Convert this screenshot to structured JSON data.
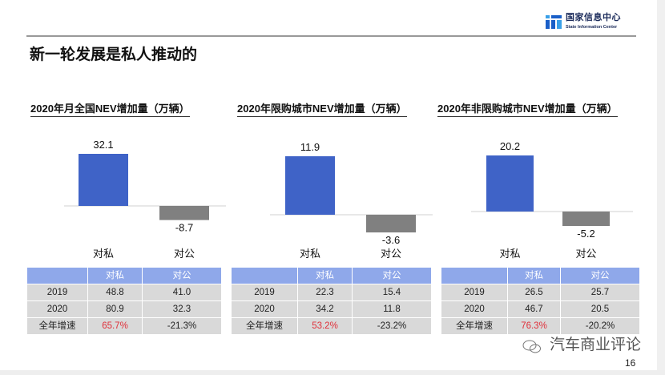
{
  "header": {
    "logo_cn": "国家信息中心",
    "logo_en": "State Information Center",
    "title": "新一轮发展是私人推动的",
    "page_number": "16"
  },
  "watermark": "汽车商业评论",
  "colors": {
    "positive_bar": "#3f63c7",
    "negative_bar": "#808080",
    "table_header": "#8fa8ea",
    "table_body": "#d9d9d9",
    "growth_positive": "#e0303a"
  },
  "chart_data": [
    {
      "type": "bar",
      "title": "2020年月全国NEV增加量（万辆）",
      "categories": [
        "对私",
        "对公"
      ],
      "values": [
        32.1,
        -8.7
      ],
      "data_labels": [
        "32.1",
        "-8.7"
      ]
    },
    {
      "type": "bar",
      "title": "2020年限购城市NEV增加量（万辆）",
      "categories": [
        "对私",
        "对公"
      ],
      "values": [
        11.9,
        -3.6
      ],
      "data_labels": [
        "11.9",
        "-3.6"
      ]
    },
    {
      "type": "bar",
      "title": "2020年非限购城市NEV增加量（万辆）",
      "categories": [
        "对私",
        "对公"
      ],
      "values": [
        20.2,
        -5.2
      ],
      "data_labels": [
        "20.2",
        "-5.2"
      ]
    }
  ],
  "tables": [
    {
      "headers": [
        "",
        "对私",
        "对公"
      ],
      "rows": [
        [
          "2019",
          "48.8",
          "41.0"
        ],
        [
          "2020",
          "80.9",
          "32.3"
        ],
        [
          "全年增速",
          "65.7%",
          "-21.3%"
        ]
      ]
    },
    {
      "headers": [
        "",
        "对私",
        "对公"
      ],
      "rows": [
        [
          "2019",
          "22.3",
          "15.4"
        ],
        [
          "2020",
          "34.2",
          "11.8"
        ],
        [
          "全年增速",
          "53.2%",
          "-23.2%"
        ]
      ]
    },
    {
      "headers": [
        "",
        "对私",
        "对公"
      ],
      "rows": [
        [
          "2019",
          "26.5",
          "25.7"
        ],
        [
          "2020",
          "46.7",
          "20.5"
        ],
        [
          "全年增速",
          "76.3%",
          "-20.2%"
        ]
      ]
    }
  ]
}
